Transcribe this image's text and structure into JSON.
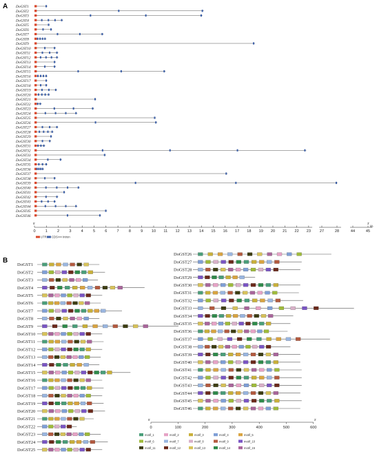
{
  "panels": {
    "a": "A",
    "b": "B"
  },
  "panel_a": {
    "genes": [
      "DoGST1",
      "DoGST2",
      "DoGST3",
      "DoGST4",
      "DoGST5",
      "DoGST6",
      "DoGST7",
      "DoGST8",
      "DoGST9",
      "DoGST10",
      "DoGST11",
      "DoGST12",
      "DoGST13",
      "DoGST14",
      "DoGST15",
      "DoGST16",
      "DoGST17",
      "DoGST18",
      "DoGST19",
      "DoGST20",
      "DoGST21",
      "DoGST22",
      "DoGST23",
      "DoGST24",
      "DoGST25",
      "DoGST26",
      "DoGST27",
      "DoGST28",
      "DoGST29",
      "DoGST30",
      "DoGST31",
      "DoGST32",
      "DoGST33",
      "DoGST34",
      "DoGST35",
      "DoGST36",
      "DoGST37",
      "DoGST38",
      "DoGST39",
      "DoGST40",
      "DoGST41",
      "DoGST42",
      "DoGST43",
      "DoGST44",
      "DoGST45",
      "DoGST46"
    ],
    "gene_lengths_kb": [
      1.1,
      14.2,
      14.1,
      2.4,
      1.3,
      1.5,
      5.8,
      1.0,
      18.5,
      1.8,
      2.0,
      2.0,
      1.8,
      1.8,
      11.0,
      1.1,
      1.1,
      1.1,
      1.9,
      1.3,
      5.2,
      0.6,
      5.0,
      3.6,
      10.2,
      10.3,
      2.0,
      1.6,
      1.5,
      1.4,
      0.9,
      22.8,
      6.0,
      2.3,
      1.1,
      0.8,
      16.2,
      1.8,
      28.0,
      3.8,
      2.6,
      2.0,
      1.8,
      3.6,
      6.1,
      5.6
    ],
    "axis_ticks": [
      "0",
      "1",
      "2",
      "3",
      "4",
      "5",
      "6",
      "7",
      "8",
      "9",
      "10",
      "11",
      "12",
      "13",
      "14",
      "15",
      "16",
      "17",
      "18",
      "19",
      "20",
      "21",
      "22",
      "23"
    ],
    "axis_break_ticks": [
      "27",
      "28",
      "44",
      "45"
    ],
    "axis_unit": "kb",
    "axis_start": "5'",
    "axis_end": "3'",
    "legend": [
      {
        "label": "UTR",
        "color": "#d9472b"
      },
      {
        "label": "CDS",
        "color": "#3b5fa8"
      },
      {
        "label": "Intron",
        "color": "#555555"
      }
    ]
  },
  "panel_b": {
    "left_genes": [
      "DoGST1",
      "DoGST2",
      "DoGST3",
      "DoGST4",
      "DoGST5",
      "DoGST6",
      "DoGST7",
      "DoGST8",
      "DoGST9",
      "DoGST10",
      "DoGST11",
      "DoGST12",
      "DoGST13",
      "DoGST14",
      "DoGST15",
      "DoGST16",
      "DoGST17",
      "DoGST18",
      "DoGST19",
      "DoGST20",
      "DoGST21",
      "DoGST22",
      "DoGST23",
      "DoGST24",
      "DoGST25"
    ],
    "right_genes": [
      "DoGST26",
      "DoGST27",
      "DoGST28",
      "DoGST29",
      "DoGST30",
      "DoGST31",
      "DoGST32",
      "DoGST33",
      "DoGST34",
      "DoGST35",
      "DoGST36",
      "DoGST37",
      "DoGST38",
      "DoGST39",
      "DoGST40",
      "DoGST41",
      "DoGST42",
      "DoGST43",
      "DoGST44",
      "DoGST45",
      "DoGST46"
    ],
    "left_lengths_aa": [
      220,
      240,
      215,
      380,
      230,
      225,
      300,
      220,
      500,
      230,
      235,
      230,
      225,
      220,
      330,
      230,
      235,
      230,
      235,
      240,
      200,
      140,
      225,
      250,
      230
    ],
    "right_lengths_aa": [
      490,
      385,
      380,
      220,
      380,
      375,
      390,
      570,
      355,
      345,
      335,
      485,
      345,
      380,
      380,
      385,
      385,
      385,
      380,
      385,
      380
    ],
    "axis_ticks": [
      "0",
      "100",
      "200",
      "300",
      "400",
      "500",
      "600"
    ],
    "axis_start": "5'",
    "axis_end": "3'",
    "motifs": [
      {
        "label": "motif_1",
        "color": "#4a9e7a"
      },
      {
        "label": "motif_2",
        "color": "#e6a3c6"
      },
      {
        "label": "motif_3",
        "color": "#c9b03a"
      },
      {
        "label": "motif_4",
        "color": "#7f9fd6"
      },
      {
        "label": "motif_5",
        "color": "#d9a441"
      },
      {
        "label": "motif_6",
        "color": "#9fbb3b"
      },
      {
        "label": "motif_7",
        "color": "#9ab6e0"
      },
      {
        "label": "motif_8",
        "color": "#d9b1c9"
      },
      {
        "label": "motif_9",
        "color": "#b35a3f"
      },
      {
        "label": "motif_10",
        "color": "#7a55c4"
      },
      {
        "label": "motif_11",
        "color": "#3d3d12"
      },
      {
        "label": "motif_12",
        "color": "#6b2a1c"
      },
      {
        "label": "motif_13",
        "color": "#d7c25a"
      },
      {
        "label": "motif_14",
        "color": "#2f8a4a"
      },
      {
        "label": "motif_15",
        "color": "#a9669b"
      }
    ]
  }
}
